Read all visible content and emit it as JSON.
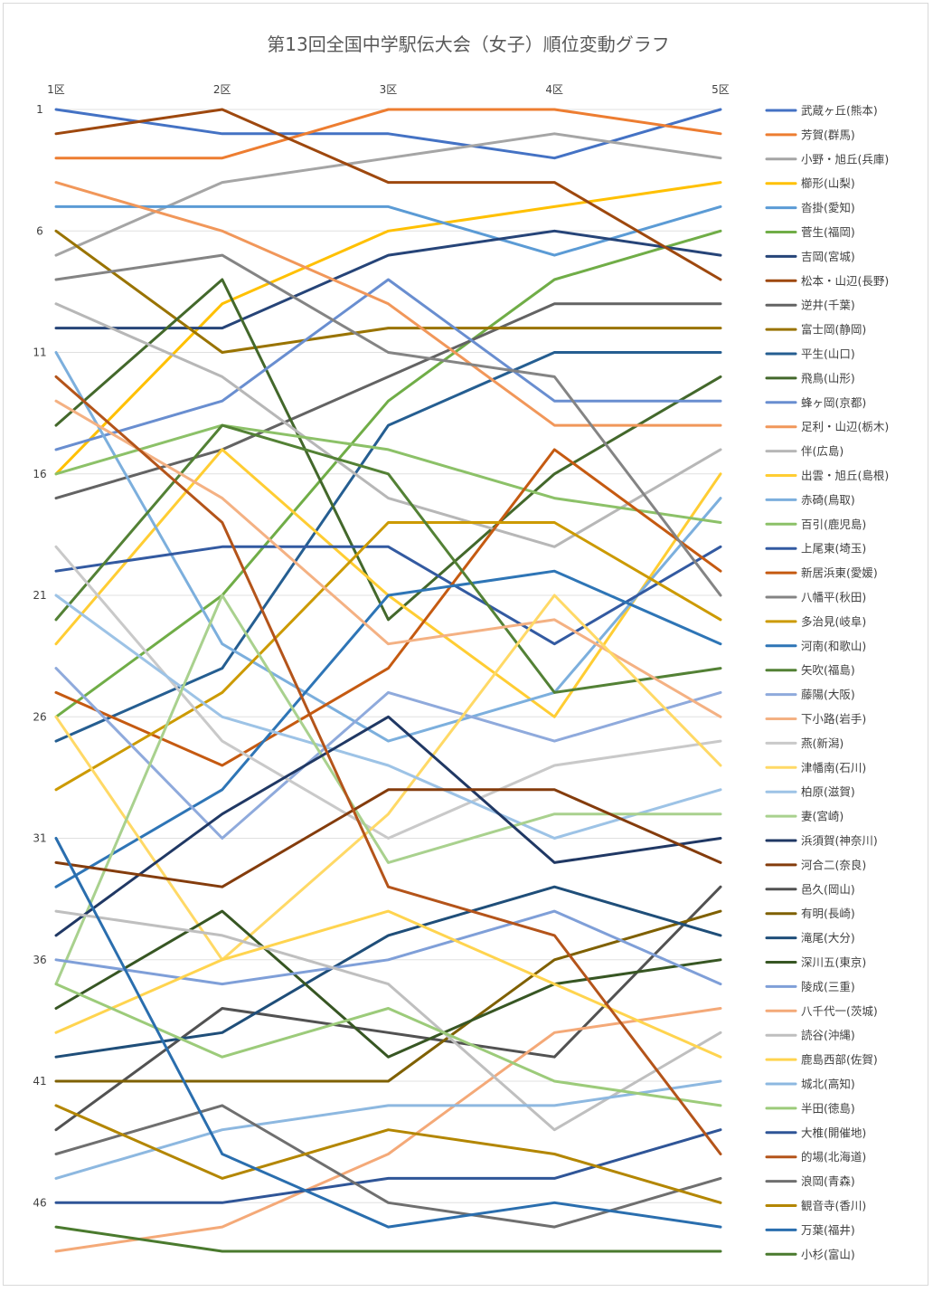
{
  "chart_data": {
    "type": "line",
    "title": "第13回全国中学駅伝大会（女子）順位変動グラフ",
    "categories": [
      "1区",
      "2区",
      "3区",
      "4区",
      "5区"
    ],
    "y_ticks": [
      1,
      6,
      11,
      16,
      21,
      26,
      31,
      36,
      41,
      46
    ],
    "ylim": [
      1,
      48
    ],
    "y_reversed": true,
    "grid": true,
    "legend_position": "right",
    "series": [
      {
        "name": "武蔵ヶ丘(熊本)",
        "color": "#4472C4",
        "values": [
          1,
          2,
          2,
          3,
          1
        ]
      },
      {
        "name": "芳賀(群馬)",
        "color": "#ED7D31",
        "values": [
          3,
          3,
          1,
          1,
          2
        ]
      },
      {
        "name": "小野・旭丘(兵庫)",
        "color": "#A5A5A5",
        "values": [
          7,
          4,
          3,
          2,
          3
        ]
      },
      {
        "name": "櫛形(山梨)",
        "color": "#FFC000",
        "values": [
          16,
          9,
          6,
          5,
          4
        ]
      },
      {
        "name": "沓掛(愛知)",
        "color": "#5B9BD5",
        "values": [
          5,
          5,
          5,
          7,
          5
        ]
      },
      {
        "name": "菅生(福岡)",
        "color": "#70AD47",
        "values": [
          26,
          21,
          13,
          8,
          6
        ]
      },
      {
        "name": "吉岡(宮城)",
        "color": "#264478",
        "values": [
          10,
          10,
          7,
          6,
          7
        ]
      },
      {
        "name": "松本・山辺(長野)",
        "color": "#9E480E",
        "values": [
          2,
          1,
          4,
          4,
          8
        ]
      },
      {
        "name": "逆井(千葉)",
        "color": "#636363",
        "values": [
          17,
          15,
          12,
          9,
          9
        ]
      },
      {
        "name": "富士岡(静岡)",
        "color": "#997300",
        "values": [
          6,
          11,
          10,
          10,
          10
        ]
      },
      {
        "name": "平生(山口)",
        "color": "#255E91",
        "values": [
          27,
          24,
          14,
          11,
          11
        ]
      },
      {
        "name": "飛鳥(山形)",
        "color": "#43682B",
        "values": [
          14,
          8,
          22,
          16,
          12
        ]
      },
      {
        "name": "蜂ヶ岡(京都)",
        "color": "#698ED0",
        "values": [
          15,
          13,
          8,
          13,
          13
        ]
      },
      {
        "name": "足利・山辺(栃木)",
        "color": "#F1975A",
        "values": [
          4,
          6,
          9,
          14,
          14
        ]
      },
      {
        "name": "伴(広島)",
        "color": "#B7B7B7",
        "values": [
          9,
          12,
          17,
          19,
          15
        ]
      },
      {
        "name": "出雲・旭丘(島根)",
        "color": "#FFCD33",
        "values": [
          23,
          15,
          21,
          26,
          16
        ]
      },
      {
        "name": "赤碕(鳥取)",
        "color": "#7CAFDD",
        "values": [
          11,
          23,
          27,
          25,
          17
        ]
      },
      {
        "name": "百引(鹿児島)",
        "color": "#8CC168",
        "values": [
          16,
          14,
          15,
          17,
          18
        ]
      },
      {
        "name": "上尾東(埼玉)",
        "color": "#335AA1",
        "values": [
          20,
          19,
          19,
          23,
          19
        ]
      },
      {
        "name": "新居浜東(愛媛)",
        "color": "#C55A11",
        "values": [
          25,
          28,
          24,
          15,
          20
        ]
      },
      {
        "name": "八幡平(秋田)",
        "color": "#848484",
        "values": [
          8,
          7,
          11,
          12,
          21
        ]
      },
      {
        "name": "多治見(岐阜)",
        "color": "#CC9A00",
        "values": [
          29,
          25,
          18,
          18,
          22
        ]
      },
      {
        "name": "河南(和歌山)",
        "color": "#2E75B6",
        "values": [
          33,
          29,
          21,
          20,
          23
        ]
      },
      {
        "name": "矢吹(福島)",
        "color": "#538135",
        "values": [
          22,
          14,
          16,
          25,
          24
        ]
      },
      {
        "name": "藤陽(大阪)",
        "color": "#8FAADC",
        "values": [
          24,
          31,
          25,
          27,
          25
        ]
      },
      {
        "name": "下小路(岩手)",
        "color": "#F4B183",
        "values": [
          13,
          17,
          23,
          22,
          26
        ]
      },
      {
        "name": "燕(新潟)",
        "color": "#C9C9C9",
        "values": [
          19,
          27,
          31,
          28,
          27
        ]
      },
      {
        "name": "津幡南(石川)",
        "color": "#FFD966",
        "values": [
          26,
          36,
          30,
          21,
          28
        ]
      },
      {
        "name": "柏原(滋賀)",
        "color": "#9DC3E6",
        "values": [
          21,
          26,
          28,
          31,
          29
        ]
      },
      {
        "name": "妻(宮崎)",
        "color": "#A9D18E",
        "values": [
          37,
          21,
          32,
          30,
          30
        ]
      },
      {
        "name": "浜須賀(神奈川)",
        "color": "#203864",
        "values": [
          35,
          30,
          26,
          32,
          31
        ]
      },
      {
        "name": "河合二(奈良)",
        "color": "#843C0C",
        "values": [
          32,
          33,
          29,
          29,
          32
        ]
      },
      {
        "name": "邑久(岡山)",
        "color": "#525252",
        "values": [
          43,
          38,
          39,
          40,
          33
        ]
      },
      {
        "name": "有明(長崎)",
        "color": "#7F6000",
        "values": [
          41,
          41,
          41,
          36,
          34
        ]
      },
      {
        "name": "滝尾(大分)",
        "color": "#1F4E79",
        "values": [
          40,
          39,
          35,
          33,
          35
        ]
      },
      {
        "name": "深川五(東京)",
        "color": "#375623",
        "values": [
          38,
          34,
          40,
          37,
          36
        ]
      },
      {
        "name": "陵成(三重)",
        "color": "#7F9FD8",
        "values": [
          36,
          37,
          36,
          34,
          37
        ]
      },
      {
        "name": "八千代一(茨城)",
        "color": "#F4A978",
        "values": [
          48,
          47,
          44,
          39,
          38
        ]
      },
      {
        "name": "読谷(沖縄)",
        "color": "#BFBFBF",
        "values": [
          34,
          35,
          37,
          43,
          39
        ]
      },
      {
        "name": "鹿島西部(佐賀)",
        "color": "#FFD44F",
        "values": [
          39,
          36,
          34,
          37,
          40
        ]
      },
      {
        "name": "城北(高知)",
        "color": "#8DB8E0",
        "values": [
          45,
          43,
          42,
          42,
          41
        ]
      },
      {
        "name": "半田(徳島)",
        "color": "#9CCB7A",
        "values": [
          37,
          40,
          38,
          41,
          42
        ]
      },
      {
        "name": "大椎(開催地)",
        "color": "#2F5597",
        "values": [
          46,
          46,
          45,
          45,
          43
        ]
      },
      {
        "name": "的場(北海道)",
        "color": "#B4541A",
        "values": [
          12,
          18,
          33,
          35,
          44
        ]
      },
      {
        "name": "浪岡(青森)",
        "color": "#6F6F6F",
        "values": [
          44,
          42,
          46,
          47,
          45
        ]
      },
      {
        "name": "観音寺(香川)",
        "color": "#B38600",
        "values": [
          42,
          45,
          43,
          44,
          46
        ]
      },
      {
        "name": "万葉(福井)",
        "color": "#2A6EAE",
        "values": [
          31,
          44,
          47,
          46,
          47
        ]
      },
      {
        "name": "小杉(富山)",
        "color": "#4A7A2E",
        "values": [
          47,
          48,
          48,
          48,
          48
        ]
      }
    ]
  }
}
